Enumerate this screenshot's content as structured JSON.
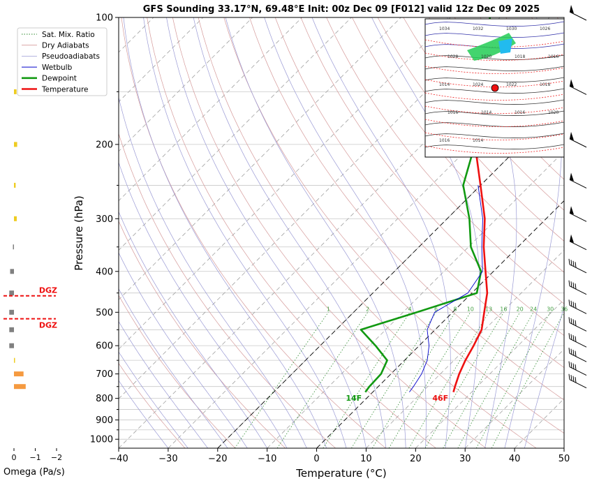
{
  "title": "GFS Sounding 33.17°N, 69.48°E Init: 00z Dec 09 [F012] valid 12z Dec 09 2025",
  "colors": {
    "temperature": "#ee1111",
    "dewpoint": "#119911",
    "wetbulb": "#0000cc",
    "dry_adiabat": "#d59a9a",
    "pseudoadiabat": "#9a9ad5",
    "mixing_ratio": "#2c8a2c",
    "isotherm": "#aaaaaa",
    "dgz": "#ee1111",
    "omega_yellow": "#eecc22",
    "omega_gray": "#808080",
    "omega_orange": "#f59a40"
  },
  "legend": {
    "placement": "top-left",
    "items": [
      {
        "label": "Sat. Mix. Ratio",
        "style": "dotted",
        "color": "#2c8a2c"
      },
      {
        "label": "Dry Adiabats",
        "style": "solid-thin",
        "color": "#d59a9a"
      },
      {
        "label": "Pseudoadiabats",
        "style": "solid-thin",
        "color": "#9a9ad5"
      },
      {
        "label": "Wetbulb",
        "style": "solid",
        "color": "#0000cc"
      },
      {
        "label": "Dewpoint",
        "style": "thick",
        "color": "#119911"
      },
      {
        "label": "Temperature",
        "style": "thick",
        "color": "#ee1111"
      }
    ]
  },
  "chart_data": {
    "type": "line",
    "subtype": "skew-t log-p",
    "xlabel": "Temperature (°C)",
    "ylabel": "Pressure (hPa)",
    "xlim": [
      -40,
      50
    ],
    "ylim": [
      1050,
      100
    ],
    "y_scale": "log",
    "x_ticks": [
      -40,
      -30,
      -20,
      -10,
      0,
      10,
      20,
      30,
      40,
      50
    ],
    "y_ticks": [
      100,
      200,
      300,
      400,
      500,
      600,
      700,
      800,
      900,
      1000
    ],
    "grid": true,
    "series": [
      {
        "name": "Temperature",
        "points": [
          [
            773,
            16.3
          ],
          [
            750,
            15.5
          ],
          [
            700,
            13.8
          ],
          [
            650,
            12.3
          ],
          [
            600,
            11.0
          ],
          [
            550,
            9.4
          ],
          [
            500,
            6.4
          ],
          [
            450,
            3.1
          ],
          [
            400,
            -1.6
          ],
          [
            350,
            -6.9
          ],
          [
            300,
            -12.4
          ],
          [
            250,
            -20.0
          ],
          [
            200,
            -29.4
          ],
          [
            150,
            -31.9
          ],
          [
            100,
            -33.5
          ]
        ]
      },
      {
        "name": "Dewpoint",
        "points": [
          [
            773,
            -1.5
          ],
          [
            750,
            -1.8
          ],
          [
            700,
            -2.0
          ],
          [
            650,
            -3.5
          ],
          [
            600,
            -8.8
          ],
          [
            550,
            -15.0
          ],
          [
            500,
            -7.2
          ],
          [
            450,
            1.0
          ],
          [
            400,
            -2.5
          ],
          [
            350,
            -9.5
          ],
          [
            300,
            -15.5
          ],
          [
            250,
            -23.5
          ],
          [
            200,
            -29.4
          ],
          [
            150,
            -41.0
          ],
          [
            100,
            -52.0
          ]
        ]
      },
      {
        "name": "Wetbulb",
        "points": [
          [
            773,
            7.4
          ],
          [
            750,
            7.1
          ],
          [
            700,
            6.2
          ],
          [
            650,
            4.6
          ],
          [
            600,
            2.0
          ],
          [
            550,
            -1.6
          ],
          [
            500,
            -3.6
          ],
          [
            450,
            -0.8
          ],
          [
            400,
            -2.2
          ],
          [
            350,
            -7.3
          ],
          [
            300,
            -12.8
          ],
          [
            250,
            -20.5
          ]
        ]
      }
    ],
    "mixing_ratio_labels": [
      "1",
      "2",
      "4",
      "6",
      "8",
      "10",
      "13",
      "16",
      "20",
      "24",
      "30",
      "36"
    ],
    "annotations": [
      {
        "text": "14F",
        "color": "#119911",
        "pressure": 810,
        "temp": -2.1
      },
      {
        "text": "46F",
        "color": "#ee1111",
        "pressure": 810,
        "temp": 15.4
      }
    ]
  },
  "omega": {
    "xlabel": "Omega (Pa/s)",
    "ticks": [
      "0",
      "−1",
      "−2"
    ],
    "bars": [
      {
        "pressure": 150,
        "value": -0.12,
        "color": "#eecc22"
      },
      {
        "pressure": 200,
        "value": -0.15,
        "color": "#eecc22"
      },
      {
        "pressure": 250,
        "value": -0.08,
        "color": "#eecc22"
      },
      {
        "pressure": 300,
        "value": -0.13,
        "color": "#eecc22"
      },
      {
        "pressure": 350,
        "value": 0.02,
        "color": "#808080"
      },
      {
        "pressure": 400,
        "value": 0.18,
        "color": "#808080"
      },
      {
        "pressure": 450,
        "value": 0.22,
        "color": "#808080"
      },
      {
        "pressure": 500,
        "value": 0.22,
        "color": "#808080"
      },
      {
        "pressure": 550,
        "value": 0.22,
        "color": "#808080"
      },
      {
        "pressure": 600,
        "value": 0.22,
        "color": "#808080"
      },
      {
        "pressure": 650,
        "value": -0.05,
        "color": "#eecc22"
      },
      {
        "pressure": 700,
        "value": -0.45,
        "color": "#f59a40"
      },
      {
        "pressure": 750,
        "value": -0.55,
        "color": "#f59a40"
      }
    ],
    "dgz": {
      "label": "DGZ",
      "top_pressure": 457,
      "bottom_pressure": 518
    }
  },
  "wind_barbs_note": "Wind barbs at right edge",
  "inset_map": {
    "contour_labels": [
      "1034",
      "1032",
      "1030",
      "1026",
      "1028",
      "1020",
      "1018",
      "1016",
      "1014",
      "1024",
      "1022",
      "1018",
      "1016",
      "1014",
      "1016",
      "1020",
      "1016",
      "1014"
    ]
  }
}
